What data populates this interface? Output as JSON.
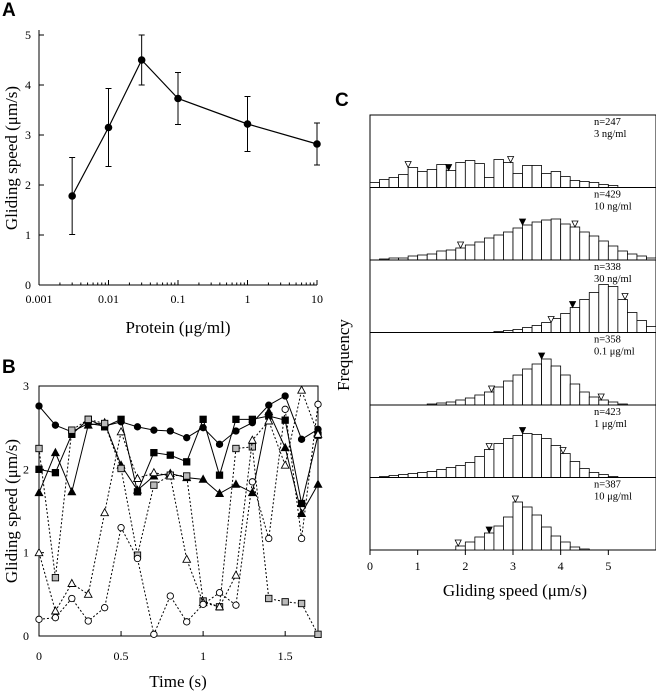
{
  "chart_data": [
    {
      "panel": "A",
      "type": "line",
      "xscale": "log",
      "xlabel": "Protein (μg/ml)",
      "ylabel": "Gliding speed (μm/s)",
      "xlim": [
        0.001,
        10
      ],
      "ylim": [
        0,
        5
      ],
      "xticks": [
        "0.001",
        "0.01",
        "0.1",
        "1",
        "10"
      ],
      "yticks": [
        "0",
        "1",
        "2",
        "3",
        "4",
        "5"
      ],
      "x": [
        0.003,
        0.01,
        0.03,
        0.1,
        1,
        10
      ],
      "y": [
        1.78,
        3.15,
        4.5,
        3.73,
        3.22,
        2.82
      ],
      "err": [
        0.77,
        0.78,
        0.5,
        0.52,
        0.55,
        0.42
      ],
      "colors": {
        "line": "#000000",
        "marker": "#000000"
      }
    },
    {
      "panel": "B",
      "type": "line",
      "xlabel": "Time (s)",
      "ylabel": "Gliding speed (μm/s)",
      "xlim": [
        0,
        1.7
      ],
      "ylim": [
        0,
        3
      ],
      "xticks": [
        "0",
        "0.5",
        "1",
        "1.5"
      ],
      "yticks": [
        "0",
        "1",
        "2",
        "3"
      ],
      "x": [
        0,
        0.1,
        0.2,
        0.3,
        0.4,
        0.5,
        0.6,
        0.7,
        0.8,
        0.9,
        1.0,
        1.1,
        1.2,
        1.3,
        1.4,
        1.5,
        1.6,
        1.7
      ],
      "series": [
        {
          "name": "filled-circle",
          "marker": "circle",
          "fill": "#000000",
          "dash": false,
          "values": [
            2.76,
            2.53,
            2.45,
            2.55,
            2.52,
            2.57,
            2.51,
            2.47,
            2.46,
            2.38,
            2.5,
            2.3,
            2.46,
            2.56,
            2.77,
            2.88,
            2.36,
            2.48
          ]
        },
        {
          "name": "filled-square",
          "marker": "square",
          "fill": "#000000",
          "dash": false,
          "values": [
            2.0,
            1.96,
            2.42,
            2.6,
            2.51,
            2.6,
            1.73,
            2.2,
            2.17,
            2.09,
            2.6,
            1.93,
            2.6,
            2.6,
            2.64,
            2.59,
            1.59,
            2.41
          ]
        },
        {
          "name": "filled-triangle",
          "marker": "triangle",
          "fill": "#000000",
          "dash": false,
          "values": [
            1.72,
            2.2,
            1.73,
            2.53,
            2.56,
            2.05,
            1.75,
            1.92,
            1.95,
            1.9,
            1.88,
            1.71,
            1.82,
            1.72,
            2.69,
            2.26,
            1.47,
            1.82
          ]
        },
        {
          "name": "open-square",
          "marker": "square",
          "fill": "#bbbbbb",
          "dash": true,
          "values": [
            2.25,
            0.7,
            2.47,
            2.6,
            2.55,
            2.01,
            0.97,
            1.81,
            1.93,
            1.92,
            0.42,
            0.35,
            2.25,
            2.27,
            0.45,
            0.41,
            0.39,
            0.02
          ]
        },
        {
          "name": "open-triangle",
          "marker": "triangle",
          "fill": "#ffffff",
          "dash": true,
          "values": [
            1.0,
            0.3,
            0.63,
            0.5,
            1.48,
            2.45,
            1.89,
            1.96,
            1.92,
            0.92,
            0.4,
            0.35,
            0.73,
            2.35,
            2.58,
            2.05,
            2.95,
            2.42
          ]
        },
        {
          "name": "open-circle",
          "marker": "circle",
          "fill": "#ffffff",
          "dash": true,
          "values": [
            0.2,
            0.22,
            0.45,
            0.18,
            0.34,
            1.3,
            0.93,
            0.02,
            0.48,
            0.17,
            0.38,
            0.52,
            0.37,
            1.85,
            1.17,
            2.72,
            1.17,
            2.78
          ]
        }
      ]
    },
    {
      "panel": "C",
      "type": "bar",
      "subtype": "stacked-histograms",
      "xlabel": "Gliding speed (μm/s)",
      "ylabel": "Frequency",
      "xlim": [
        0,
        6
      ],
      "xticks": [
        "0",
        "1",
        "2",
        "3",
        "4",
        "5"
      ],
      "bin_width": 0.2,
      "histograms": [
        {
          "n_label": "n=247",
          "conc_label": "3 ng/ml",
          "counts": [
            0.5,
            0.8,
            1.0,
            1.3,
            2.0,
            1.6,
            1.8,
            2.3,
            1.7,
            2.5,
            2.7,
            2.4,
            1.0,
            2.8,
            2.5,
            1.4,
            2.2,
            2.2,
            1.4,
            1.6,
            1.1,
            0.7,
            0.6,
            0.5,
            0.3,
            0.2,
            0,
            0,
            0,
            0
          ],
          "mean": 1.65,
          "lower": 0.8,
          "upper": 2.95
        },
        {
          "n_label": "n=429",
          "conc_label": "10 ng/ml",
          "counts": [
            0,
            0.1,
            0.2,
            0.2,
            0.4,
            0.5,
            0.6,
            0.9,
            1.0,
            1.2,
            1.5,
            1.8,
            2.2,
            2.5,
            2.8,
            3.2,
            3.5,
            3.8,
            4.0,
            4.1,
            3.6,
            3.3,
            2.8,
            2.4,
            1.9,
            1.4,
            0.9,
            0.6,
            0.4,
            0.2
          ],
          "mean": 3.2,
          "lower": 1.9,
          "upper": 4.3
        },
        {
          "n_label": "n=338",
          "conc_label": "30 ng/ml",
          "counts": [
            0,
            0,
            0,
            0,
            0,
            0,
            0,
            0,
            0,
            0,
            0,
            0,
            0,
            0.1,
            0.2,
            0.3,
            0.5,
            0.7,
            1.0,
            1.4,
            1.9,
            2.5,
            3.3,
            4.0,
            4.8,
            4.6,
            3.3,
            2.0,
            1.2,
            0.6
          ],
          "mean": 4.25,
          "lower": 3.8,
          "upper": 5.35
        },
        {
          "n_label": "n=358",
          "conc_label": "0.1 μg/ml",
          "counts": [
            0,
            0,
            0,
            0,
            0,
            0,
            0.1,
            0.2,
            0.3,
            0.5,
            0.7,
            1.0,
            1.3,
            1.8,
            2.4,
            3.0,
            3.6,
            4.1,
            4.6,
            3.9,
            3.0,
            2.1,
            1.3,
            0.8,
            0.5,
            0.3,
            0.1,
            0,
            0,
            0
          ],
          "mean": 3.6,
          "lower": 2.55,
          "upper": 4.85
        },
        {
          "n_label": "n=423",
          "conc_label": "1 μg/ml",
          "counts": [
            0,
            0.1,
            0.2,
            0.3,
            0.4,
            0.5,
            0.6,
            0.8,
            1.0,
            1.2,
            1.5,
            2.1,
            2.8,
            3.4,
            3.9,
            4.2,
            4.4,
            4.3,
            3.9,
            3.2,
            2.4,
            1.6,
            0.9,
            0.5,
            0.3,
            0.1,
            0,
            0,
            0,
            0
          ],
          "mean": 3.2,
          "lower": 2.5,
          "upper": 4.05
        },
        {
          "n_label": "n=387",
          "conc_label": "10 μg/ml",
          "counts": [
            0,
            0,
            0,
            0,
            0,
            0,
            0,
            0,
            0,
            0.4,
            0.8,
            1.3,
            1.7,
            2.4,
            3.3,
            4.8,
            4.3,
            3.5,
            2.3,
            1.4,
            0.8,
            0.3,
            0.1,
            0,
            0,
            0,
            0,
            0,
            0,
            0
          ],
          "mean": 2.5,
          "lower": 1.85,
          "upper": 3.05
        }
      ]
    }
  ]
}
